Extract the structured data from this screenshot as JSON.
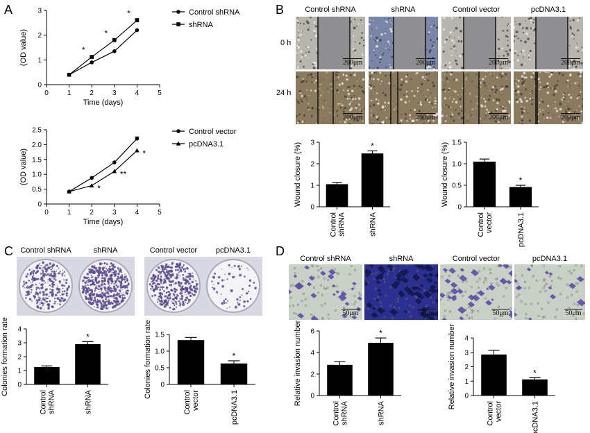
{
  "panels": {
    "A": "A",
    "B": "B",
    "C": "C",
    "D": "D"
  },
  "colors": {
    "bar": "#000000",
    "dish_bg": "#e9e9f0",
    "stain": "#5b4a8f",
    "transwell_bg": "#c9d0c6",
    "invasion_dark": "#2c2f8f",
    "cell": "#5a4ea8",
    "wound_gap": "#8f8f91",
    "wound_cells": "#b7b5ad",
    "brown_cells": "#8a7a5e"
  },
  "labels": {
    "B_cols": [
      "Control shRNA",
      "shRNA",
      "Control vector",
      "pcDNA3.1"
    ],
    "B_rows": [
      "0 h",
      "24 h"
    ],
    "B_scale": "200μm",
    "C_cols": [
      "Control shRNA",
      "shRNA",
      "Control vector",
      "pcDNA3.1"
    ],
    "D_cols": [
      "Control shRNA",
      "shRNA",
      "Control vector",
      "pcDNA3.1"
    ],
    "D_scale": "50μm"
  },
  "chart_data": [
    {
      "id": "A1",
      "type": "line",
      "xlabel": "Time (days)",
      "ylabel": "(OD value)",
      "xlim": [
        0,
        5
      ],
      "ylim": [
        0,
        3
      ],
      "xticks": [
        "0",
        "1",
        "2",
        "3",
        "4",
        "5"
      ],
      "yticks": [
        "0",
        "1",
        "2",
        "3"
      ],
      "legend": "top-right",
      "series": [
        {
          "name": "Control shRNA",
          "marker": "circle",
          "x": [
            1,
            2,
            3,
            4
          ],
          "y": [
            0.4,
            0.9,
            1.35,
            2.2
          ]
        },
        {
          "name": "shRNA",
          "marker": "square",
          "x": [
            1,
            2,
            3,
            4
          ],
          "y": [
            0.4,
            1.12,
            1.8,
            2.6
          ],
          "err": [
            0,
            0.04,
            0.04,
            0.07
          ]
        }
      ],
      "annotations": [
        {
          "x": 2,
          "y": 1.12,
          "text": "*",
          "pos": "left"
        },
        {
          "x": 3,
          "y": 1.8,
          "text": "*",
          "pos": "left"
        },
        {
          "x": 4,
          "y": 2.6,
          "text": "*",
          "pos": "left"
        }
      ]
    },
    {
      "id": "A2",
      "type": "line",
      "xlabel": "Time (days)",
      "ylabel": "(OD value)",
      "xlim": [
        0,
        5
      ],
      "ylim": [
        0,
        2.5
      ],
      "xticks": [
        "0",
        "1",
        "2",
        "3",
        "4",
        "5"
      ],
      "yticks": [
        "0",
        "0.5",
        "1.0",
        "1.5",
        "2.0",
        "2.5"
      ],
      "legend": "top-right",
      "series": [
        {
          "name": "Control vector",
          "marker": "circle",
          "x": [
            1,
            2,
            3,
            4
          ],
          "y": [
            0.42,
            0.88,
            1.4,
            2.2
          ],
          "err": [
            0,
            0,
            0,
            0.06
          ]
        },
        {
          "name": "pcDNA3.1",
          "marker": "triangle",
          "x": [
            1,
            2,
            3,
            4
          ],
          "y": [
            0.42,
            0.62,
            1.1,
            1.8
          ]
        }
      ],
      "annotations": [
        {
          "x": 2,
          "y": 0.62,
          "text": "*",
          "pos": "right"
        },
        {
          "x": 3,
          "y": 1.1,
          "text": "**",
          "pos": "right"
        },
        {
          "x": 4,
          "y": 1.8,
          "text": "*",
          "pos": "right"
        }
      ]
    },
    {
      "id": "B1",
      "type": "bar",
      "ylabel": "Wound closure (%)",
      "ylim": [
        0,
        3
      ],
      "yticks": [
        "0",
        "1",
        "2",
        "3"
      ],
      "categories": [
        "Control\nshRNA",
        "shRNA"
      ],
      "values": [
        1.05,
        2.48
      ],
      "err": [
        0.08,
        0.12
      ],
      "sig": [
        "",
        "*"
      ]
    },
    {
      "id": "B2",
      "type": "bar",
      "ylabel": "Wound closure (%)",
      "ylim": [
        0,
        1.5
      ],
      "yticks": [
        "0",
        "0.5",
        "1.0",
        "1.5"
      ],
      "categories": [
        "Control\nvector",
        "pcDNA3.1"
      ],
      "values": [
        1.05,
        0.46
      ],
      "err": [
        0.06,
        0.04
      ],
      "sig": [
        "",
        "*"
      ]
    },
    {
      "id": "C1",
      "type": "bar",
      "ylabel": "Colonies formation rate",
      "ylim": [
        0,
        4
      ],
      "yticks": [
        "0",
        "1",
        "2",
        "3",
        "4"
      ],
      "categories": [
        "Control\nshRNA",
        "shRNA"
      ],
      "values": [
        1.25,
        2.9
      ],
      "err": [
        0.08,
        0.18
      ],
      "sig": [
        "",
        "*"
      ]
    },
    {
      "id": "C2",
      "type": "bar",
      "ylabel": "Colonies formation rate",
      "ylim": [
        0,
        1.5
      ],
      "yticks": [
        "0",
        "0.5",
        "1.0",
        "1.5"
      ],
      "categories": [
        "Control\nvector",
        "pcDNA3.1"
      ],
      "values": [
        1.33,
        0.63
      ],
      "err": [
        0.08,
        0.08
      ],
      "sig": [
        "",
        "*"
      ]
    },
    {
      "id": "D1",
      "type": "bar",
      "ylabel": "Relative invasion number",
      "ylim": [
        0,
        6
      ],
      "yticks": [
        "0",
        "2",
        "4",
        "6"
      ],
      "categories": [
        "Control\nshRNA",
        "shRNA"
      ],
      "values": [
        2.85,
        4.9
      ],
      "err": [
        0.3,
        0.45
      ],
      "sig": [
        "",
        "*"
      ]
    },
    {
      "id": "D2",
      "type": "bar",
      "ylabel": "Relative invasion number",
      "ylim": [
        0,
        4
      ],
      "yticks": [
        "0",
        "1",
        "2",
        "3",
        "4"
      ],
      "categories": [
        "Control\nvector",
        "pcDNA3.1"
      ],
      "values": [
        2.85,
        1.12
      ],
      "err": [
        0.3,
        0.12
      ],
      "sig": [
        "",
        "*"
      ]
    }
  ]
}
